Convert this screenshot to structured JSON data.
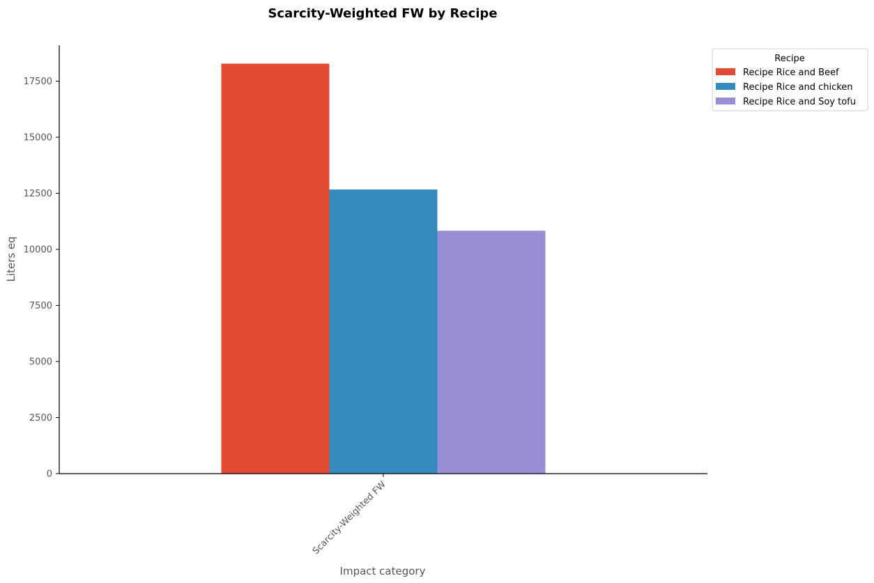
{
  "chart_data": {
    "type": "bar",
    "title": "Scarcity-Weighted FW by Recipe",
    "xlabel": "Impact category",
    "ylabel": "Liters eq",
    "categories": [
      "Scarcity-Weighted FW"
    ],
    "series": [
      {
        "name": "Recipe Rice and Beef",
        "values": [
          18280
        ],
        "color": "#e24a33"
      },
      {
        "name": "Recipe Rice and chicken",
        "values": [
          12670
        ],
        "color": "#348abd"
      },
      {
        "name": "Recipe Rice and Soy tofu",
        "values": [
          10830
        ],
        "color": "#988ed5"
      }
    ],
    "ylim": [
      0,
      19100
    ],
    "yticks": [
      0,
      2500,
      5000,
      7500,
      10000,
      12500,
      15000,
      17500
    ],
    "grid": false,
    "legend": {
      "title": "Recipe",
      "placement": "outside top-right"
    }
  }
}
